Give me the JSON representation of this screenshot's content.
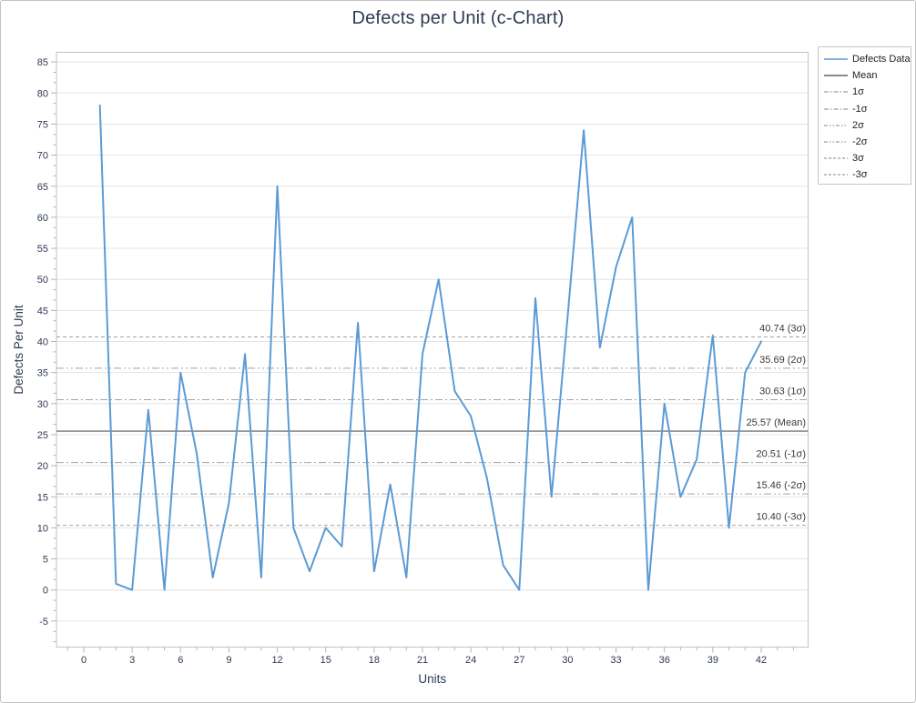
{
  "chart_data": {
    "type": "line",
    "title": "Defects per Unit (c-Chart)",
    "xlabel": "Units",
    "ylabel": "Defects Per Unit",
    "x": [
      1,
      2,
      3,
      4,
      5,
      6,
      7,
      8,
      9,
      10,
      11,
      12,
      13,
      14,
      15,
      16,
      17,
      18,
      19,
      20,
      21,
      22,
      23,
      24,
      25,
      26,
      27,
      28,
      29,
      30,
      31,
      32,
      33,
      34,
      35,
      36,
      37,
      38,
      39,
      40,
      41,
      42
    ],
    "series": [
      {
        "name": "Defects Data",
        "color": "#5b9bd5",
        "values": [
          78,
          1,
          0,
          29,
          0,
          35,
          22,
          2,
          14,
          38,
          2,
          65,
          10,
          3,
          10,
          7,
          43,
          3,
          17,
          2,
          38,
          50,
          32,
          28,
          18,
          4,
          0,
          47,
          15,
          44,
          74,
          39,
          52,
          60,
          0,
          30,
          15,
          21,
          41,
          10,
          35,
          40
        ]
      }
    ],
    "control_lines": [
      {
        "name": "3σ",
        "label": "40.74 (3σ)",
        "value": 40.74,
        "style": "dash"
      },
      {
        "name": "2σ",
        "label": "35.69 (2σ)",
        "value": 35.69,
        "style": "dash-dot-dot"
      },
      {
        "name": "1σ",
        "label": "30.63 (1σ)",
        "value": 30.63,
        "style": "dash-dot"
      },
      {
        "name": "Mean",
        "label": "25.57 (Mean)",
        "value": 25.57,
        "style": "solid"
      },
      {
        "name": "-1σ",
        "label": "20.51 (-1σ)",
        "value": 20.51,
        "style": "dash-dot"
      },
      {
        "name": "-2σ",
        "label": "15.46 (-2σ)",
        "value": 15.46,
        "style": "dash-dot-dot"
      },
      {
        "name": "-3σ",
        "label": "10.40 (-3σ)",
        "value": 10.4,
        "style": "dash"
      }
    ],
    "legend": {
      "position": "top-right",
      "items": [
        {
          "label": "Defects Data",
          "style": "solid",
          "color": "#5b9bd5",
          "width": 1.5
        },
        {
          "label": "Mean",
          "style": "solid",
          "color": "#8a8a8a",
          "width": 2
        },
        {
          "label": "1σ",
          "style": "dash-dot",
          "color": "#9e9e9e",
          "width": 1.2
        },
        {
          "label": "-1σ",
          "style": "dash-dot",
          "color": "#9e9e9e",
          "width": 1.2
        },
        {
          "label": "2σ",
          "style": "dash-dot-dot",
          "color": "#9e9e9e",
          "width": 1.2
        },
        {
          "label": "-2σ",
          "style": "dash-dot-dot",
          "color": "#9e9e9e",
          "width": 1.2
        },
        {
          "label": "3σ",
          "style": "dash",
          "color": "#9e9e9e",
          "width": 1.2
        },
        {
          "label": "-3σ",
          "style": "dash",
          "color": "#9e9e9e",
          "width": 1.2
        }
      ]
    },
    "x_axis": {
      "min": 0,
      "max": 42,
      "tick_step": 3,
      "minor_step": 1
    },
    "y_axis": {
      "min": -5,
      "max": 85,
      "tick_step": 5,
      "minor_step": 1.6667
    },
    "grid": "horizontal-major-only"
  },
  "colors": {
    "series_line": "#5b9bd5",
    "mean_line": "#8a8a8a",
    "sigma_line": "#a3a3a3",
    "gridline": "#e4e4e4",
    "plot_border": "#c2c2c2",
    "tick": "#b5b5b5",
    "axis_text": "#2e3a54",
    "annotation_text": "#3a3a3a",
    "title_text": "#2e3a54",
    "panel_border": "#c3c3c3",
    "background": "#ffffff"
  }
}
